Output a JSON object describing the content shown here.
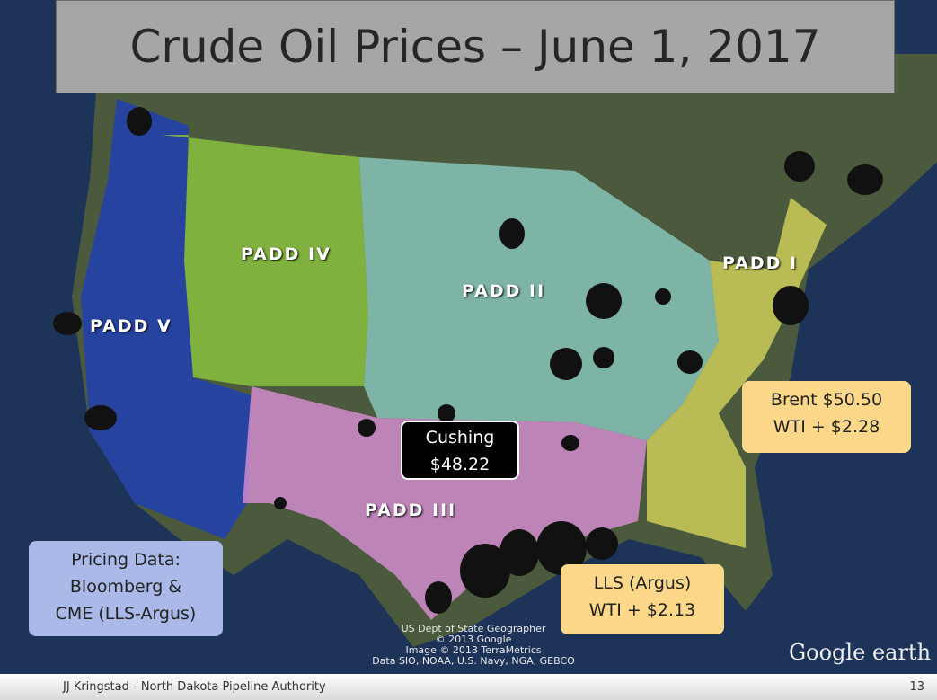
{
  "header": {
    "title": "Crude Oil Prices – June 1, 2017"
  },
  "regions": [
    "PADD I",
    "PADD II",
    "PADD III",
    "PADD IV",
    "PADD V"
  ],
  "callouts": {
    "cushing": [
      "Cushing",
      "$48.22"
    ],
    "brent": [
      "Brent $50.50",
      "WTI + $2.28"
    ],
    "lls": [
      "LLS (Argus)",
      "WTI + $2.13"
    ],
    "source": [
      "Pricing Data:",
      "Bloomberg &",
      "CME (LLS-Argus)"
    ]
  },
  "attribution": [
    "US Dept of State Geographer",
    "© 2013 Google",
    "Image © 2013 TerraMetrics",
    "Data SIO, NOAA, U.S. Navy, NGA, GEBCO"
  ],
  "logo": "Google earth",
  "footer": {
    "author": "JJ Kringstad - North Dakota Pipeline Authority",
    "page": "13"
  }
}
